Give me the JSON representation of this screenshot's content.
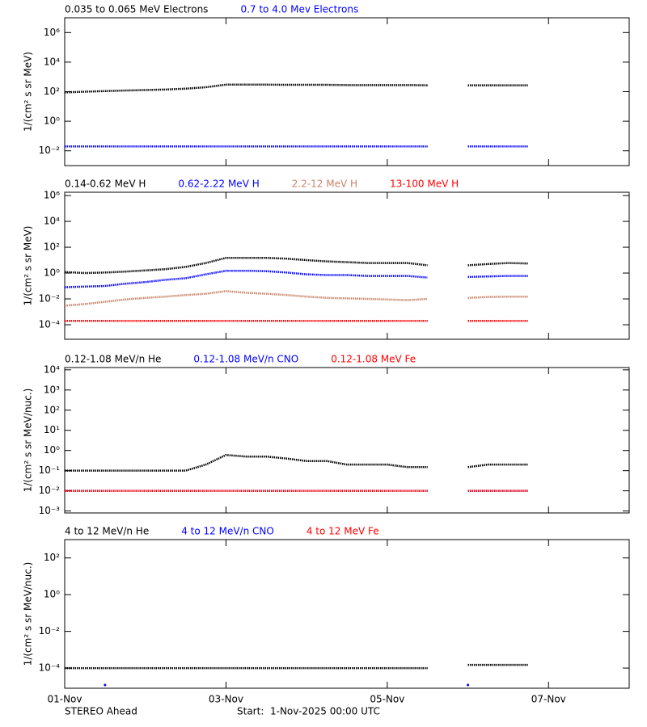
{
  "chart_data": [
    {
      "type": "line",
      "log_y": true,
      "y_label": "1/(cm² s sr MeV)",
      "x": [
        0,
        0.25,
        0.5,
        0.75,
        1,
        1.25,
        1.5,
        1.75,
        2,
        2.25,
        2.5,
        2.75,
        3,
        3.25,
        3.5,
        3.75,
        4,
        4.25,
        4.5,
        4.75,
        5,
        5.25,
        5.5,
        5.75
      ],
      "xlim": [
        0,
        7
      ],
      "ylim": [
        0.001,
        10000000
      ],
      "yticks": [
        {
          "value": 0.01,
          "label": "10⁻²"
        },
        {
          "value": 1,
          "label": "10⁰"
        },
        {
          "value": 100,
          "label": "10²"
        },
        {
          "value": 10000,
          "label": "10⁴"
        },
        {
          "value": 1000000,
          "label": "10⁶"
        }
      ],
      "series": [
        {
          "name": "0.035 to 0.065 MeV Electrons",
          "color": "#000000",
          "values": [
            90,
            100,
            110,
            120,
            130,
            140,
            160,
            200,
            300,
            300,
            300,
            290,
            290,
            290,
            280,
            280,
            280,
            280,
            270,
            null,
            270,
            270,
            270,
            270
          ]
        },
        {
          "name": "0.7 to 4.0 Mev Electrons",
          "color": "#0000ff",
          "values": [
            0.02,
            0.02,
            0.02,
            0.02,
            0.02,
            0.02,
            0.02,
            0.02,
            0.02,
            0.02,
            0.02,
            0.02,
            0.02,
            0.02,
            0.02,
            0.02,
            0.02,
            0.02,
            0.02,
            null,
            0.02,
            0.02,
            0.02,
            0.02
          ]
        }
      ]
    },
    {
      "type": "line",
      "log_y": true,
      "y_label": "1/(cm² s sr MeV)",
      "x": [
        0,
        0.25,
        0.5,
        0.75,
        1,
        1.25,
        1.5,
        1.75,
        2,
        2.25,
        2.5,
        2.75,
        3,
        3.25,
        3.5,
        3.75,
        4,
        4.25,
        4.5,
        4.75,
        5,
        5.25,
        5.5,
        5.75
      ],
      "xlim": [
        0,
        7
      ],
      "ylim": [
        7.5e-06,
        1800000
      ],
      "yticks": [
        {
          "value": 0.0001,
          "label": "10⁻⁴"
        },
        {
          "value": 0.01,
          "label": "10⁻²"
        },
        {
          "value": 1,
          "label": "10⁰"
        },
        {
          "value": 100,
          "label": "10²"
        },
        {
          "value": 10000,
          "label": "10⁴"
        },
        {
          "value": 1000000,
          "label": "10⁶"
        }
      ],
      "series": [
        {
          "name": "0.14-0.62 MeV H",
          "color": "#000000",
          "values": [
            1.2,
            1.0,
            1.1,
            1.3,
            1.6,
            2.0,
            3,
            6,
            15,
            15,
            15,
            13,
            10,
            8,
            7,
            6,
            6,
            6,
            4,
            null,
            4,
            5,
            6,
            5.5
          ]
        },
        {
          "name": "0.62-2.22 MeV H",
          "color": "#0000ff",
          "values": [
            0.08,
            0.09,
            0.1,
            0.15,
            0.2,
            0.3,
            0.4,
            0.8,
            1.5,
            1.5,
            1.4,
            1.1,
            0.8,
            0.7,
            0.7,
            0.6,
            0.6,
            0.6,
            0.45,
            null,
            0.5,
            0.55,
            0.6,
            0.6
          ]
        },
        {
          "name": "2.2-12 MeV H",
          "color": "#c8846a",
          "values": [
            0.003,
            0.004,
            0.006,
            0.009,
            0.012,
            0.015,
            0.02,
            0.025,
            0.04,
            0.03,
            0.025,
            0.02,
            0.015,
            0.012,
            0.011,
            0.01,
            0.009,
            0.008,
            0.01,
            null,
            0.012,
            0.014,
            0.015,
            0.015
          ]
        },
        {
          "name": "13-100 MeV H",
          "color": "#ff0000",
          "values": [
            0.0002,
            0.0002,
            0.0002,
            0.0002,
            0.0002,
            0.0002,
            0.0002,
            0.0002,
            0.0002,
            0.0002,
            0.0002,
            0.0002,
            0.0002,
            0.0002,
            0.0002,
            0.0002,
            0.0002,
            0.0002,
            0.0002,
            null,
            0.0002,
            0.0002,
            0.0002,
            0.0002
          ]
        }
      ]
    },
    {
      "type": "line",
      "log_y": true,
      "y_label": "1/(cm² s sr MeV/nuc.)",
      "x": [
        0,
        0.25,
        0.5,
        0.75,
        1,
        1.25,
        1.5,
        1.75,
        2,
        2.25,
        2.5,
        2.75,
        3,
        3.25,
        3.5,
        3.75,
        4,
        4.25,
        4.5,
        4.75,
        5,
        5.25,
        5.5,
        5.75
      ],
      "xlim": [
        0,
        7
      ],
      "ylim": [
        0.0008,
        13000
      ],
      "yticks": [
        {
          "value": 0.001,
          "label": "10⁻³"
        },
        {
          "value": 0.01,
          "label": "10⁻²"
        },
        {
          "value": 0.1,
          "label": "10⁻¹"
        },
        {
          "value": 1,
          "label": "10⁰"
        },
        {
          "value": 10,
          "label": "10¹"
        },
        {
          "value": 100,
          "label": "10²"
        },
        {
          "value": 1000,
          "label": "10³"
        },
        {
          "value": 10000,
          "label": "10⁴"
        }
      ],
      "series": [
        {
          "name": "0.12-1.08 MeV/n He",
          "color": "#000000",
          "values": [
            0.1,
            0.1,
            0.1,
            0.1,
            0.1,
            0.1,
            0.1,
            0.2,
            0.6,
            0.5,
            0.5,
            0.4,
            0.3,
            0.3,
            0.2,
            0.2,
            0.2,
            0.15,
            0.15,
            null,
            0.15,
            0.2,
            0.2,
            0.2
          ]
        },
        {
          "name": "0.12-1.08 MeV/n CNO",
          "color": "#0000ff",
          "values": [
            0.01,
            0.01,
            0.01,
            0.01,
            0.01,
            0.01,
            0.01,
            0.01,
            0.01,
            0.01,
            0.01,
            0.01,
            0.01,
            0.01,
            0.01,
            0.01,
            0.01,
            0.01,
            0.01,
            null,
            0.01,
            0.01,
            0.01,
            0.01
          ]
        },
        {
          "name": "0.12-1.08 MeV Fe",
          "color": "#ff0000",
          "values": [
            0.01,
            0.01,
            0.01,
            0.01,
            0.01,
            0.01,
            0.01,
            0.01,
            0.01,
            0.01,
            0.01,
            0.01,
            0.01,
            0.01,
            0.01,
            0.01,
            0.01,
            0.01,
            0.01,
            null,
            0.01,
            0.01,
            0.01,
            0.01
          ]
        }
      ]
    },
    {
      "type": "line",
      "log_y": true,
      "y_label": "1/(cm² s sr MeV/nuc.)",
      "x": [
        0,
        0.25,
        0.5,
        0.75,
        1,
        1.25,
        1.5,
        1.75,
        2,
        2.25,
        2.5,
        2.75,
        3,
        3.25,
        3.5,
        3.75,
        4,
        4.25,
        4.5,
        4.75,
        5,
        5.25,
        5.5,
        5.75
      ],
      "xlim": [
        0,
        7
      ],
      "ylim": [
        8e-06,
        1000
      ],
      "xticks": [
        {
          "value": 0,
          "label": "01-Nov"
        },
        {
          "value": 2,
          "label": "03-Nov"
        },
        {
          "value": 4,
          "label": "05-Nov"
        },
        {
          "value": 6,
          "label": "07-Nov"
        }
      ],
      "yticks": [
        {
          "value": 0.0001,
          "label": "10⁻⁴"
        },
        {
          "value": 0.01,
          "label": "10⁻²"
        },
        {
          "value": 1,
          "label": "10⁰"
        },
        {
          "value": 100,
          "label": "10²"
        }
      ],
      "series": [
        {
          "name": "4 to 12 MeV/n He",
          "color": "#000000",
          "values": [
            0.0001,
            0.0001,
            0.0001,
            0.0001,
            0.0001,
            0.0001,
            0.0001,
            0.0001,
            0.0001,
            0.0001,
            0.0001,
            0.0001,
            0.0001,
            0.0001,
            0.0001,
            0.0001,
            0.0001,
            0.0001,
            0.0001,
            null,
            0.00015,
            0.00015,
            0.00015,
            0.00015
          ]
        },
        {
          "name": "4 to 12 MeV/n CNO",
          "color": "#0000ff",
          "values": [
            null,
            null,
            1.2e-05,
            null,
            null,
            null,
            null,
            null,
            null,
            null,
            null,
            null,
            null,
            null,
            null,
            null,
            null,
            null,
            null,
            null,
            1.2e-05,
            null,
            null,
            null
          ]
        },
        {
          "name": "4 to 12 MeV Fe",
          "color": "#ff0000",
          "values": [
            null,
            null,
            null,
            null,
            null,
            null,
            null,
            null,
            null,
            null,
            null,
            null,
            null,
            null,
            null,
            null,
            null,
            null,
            null,
            null,
            null,
            null,
            null,
            null
          ]
        }
      ]
    }
  ],
  "footer": {
    "left": "STEREO Ahead",
    "right": "Start:  1-Nov-2025 00:00 UTC"
  }
}
